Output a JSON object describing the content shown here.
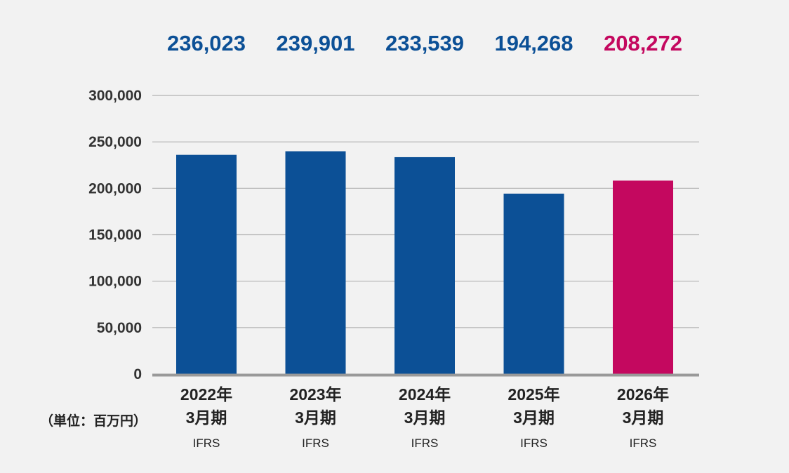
{
  "chart_data": {
    "type": "bar",
    "categories": [
      {
        "line1": "2022年",
        "line2": "3月期",
        "line3": "IFRS"
      },
      {
        "line1": "2023年",
        "line2": "3月期",
        "line3": "IFRS"
      },
      {
        "line1": "2024年",
        "line2": "3月期",
        "line3": "IFRS"
      },
      {
        "line1": "2025年",
        "line2": "3月期",
        "line3": "IFRS"
      },
      {
        "line1": "2026年",
        "line2": "3月期",
        "line3": "IFRS"
      }
    ],
    "values": [
      236023,
      239901,
      233539,
      194268,
      208272
    ],
    "value_labels": [
      "236,023",
      "239,901",
      "233,539",
      "194,268",
      "208,272"
    ],
    "bar_colors": [
      "#0c5096",
      "#0c5096",
      "#0c5096",
      "#0c5096",
      "#c4085f"
    ],
    "label_colors": [
      "#0c5096",
      "#0c5096",
      "#0c5096",
      "#0c5096",
      "#c4085f"
    ],
    "ylim": [
      0,
      300000
    ],
    "yticks": [
      0,
      50000,
      100000,
      150000,
      200000,
      250000,
      300000
    ],
    "ytick_labels": [
      "0",
      "50,000",
      "100,000",
      "150,000",
      "200,000",
      "250,000",
      "300,000"
    ],
    "unit_label": "（単位：百万円）",
    "grid": true,
    "title": "",
    "xlabel": "",
    "ylabel": ""
  }
}
